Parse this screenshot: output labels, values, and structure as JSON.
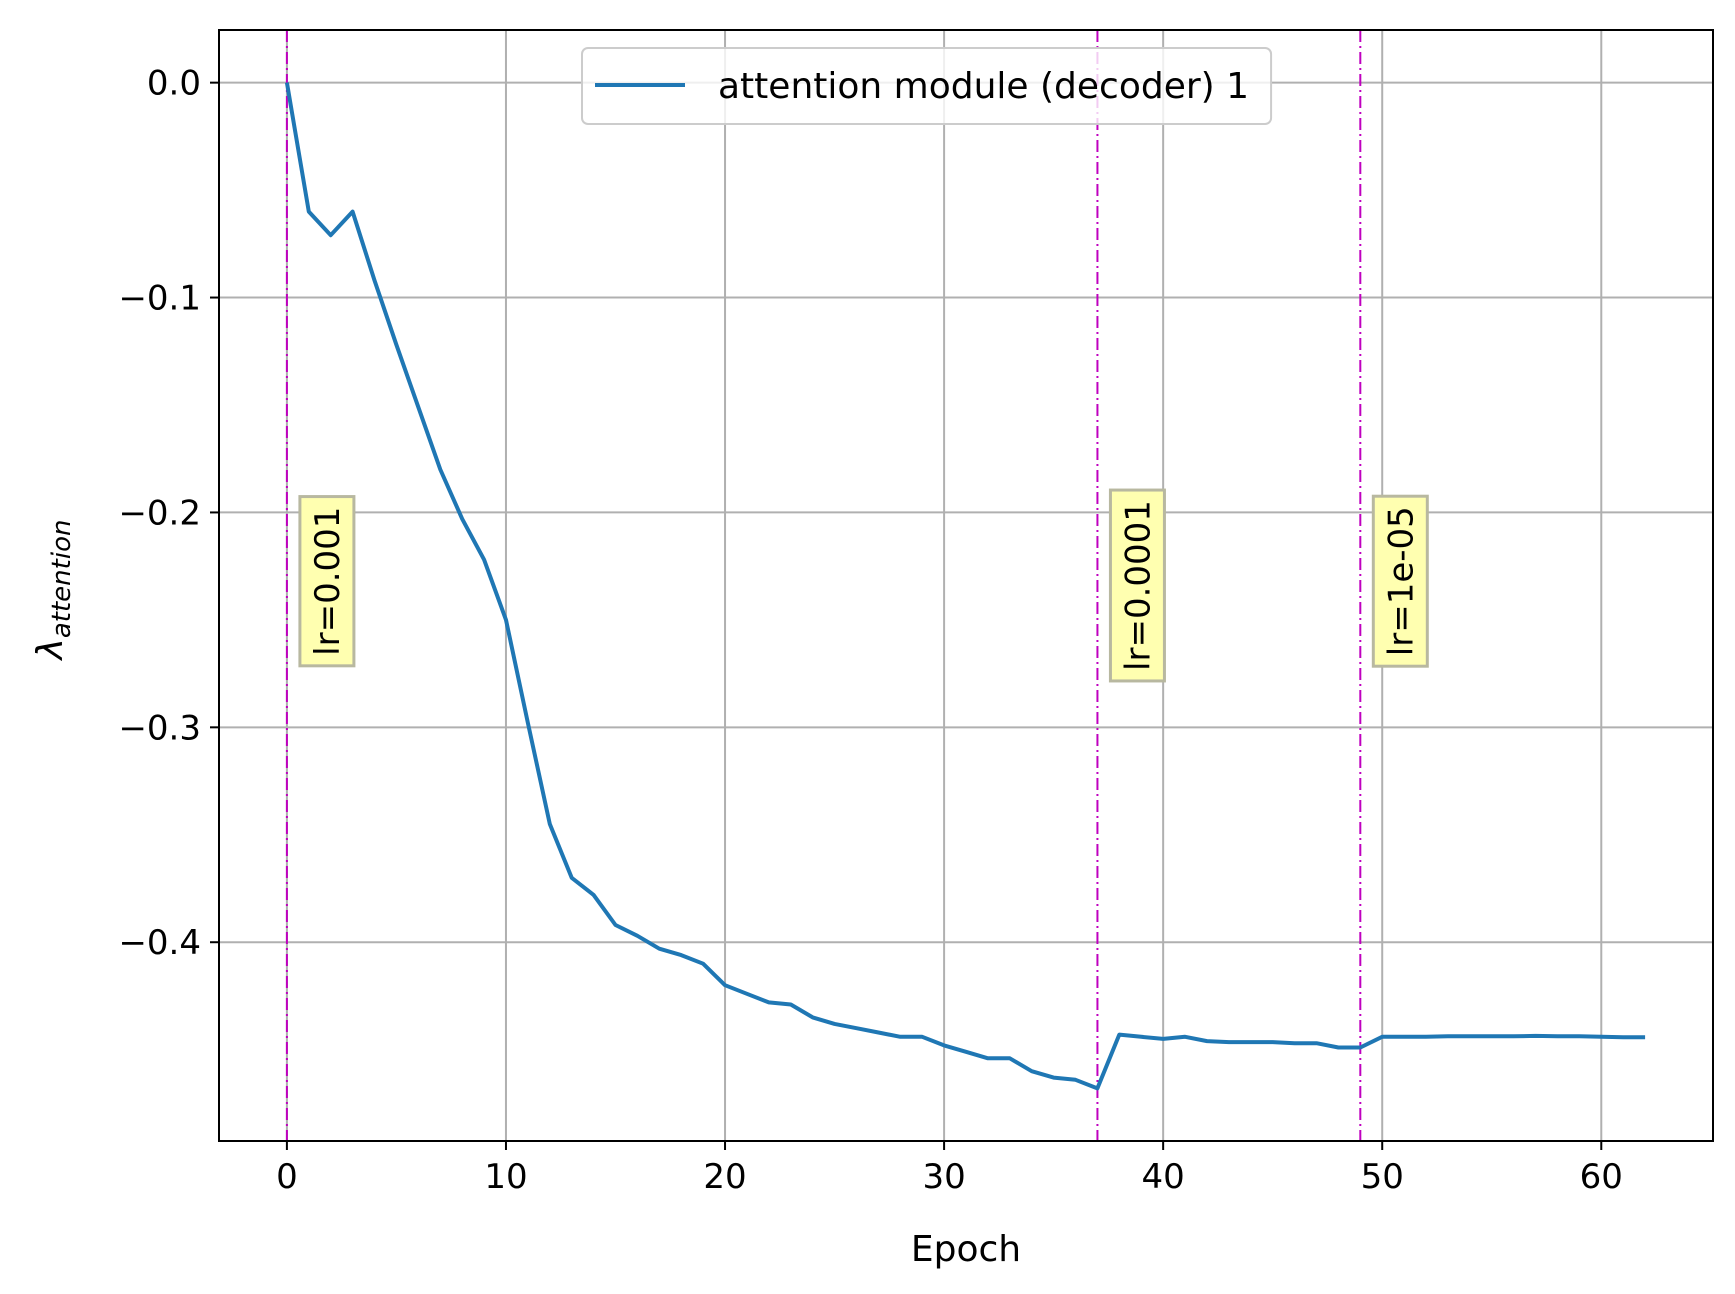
{
  "chart_data": {
    "type": "line",
    "xlabel": "Epoch",
    "ylabel_main": "λ",
    "ylabel_sub": "attention",
    "xlim": [
      -3.1,
      65.1
    ],
    "ylim": [
      -0.4925,
      0.0245
    ],
    "xticks": [
      0,
      10,
      20,
      30,
      40,
      50,
      60
    ],
    "yticks": [
      0.0,
      -0.1,
      -0.2,
      -0.3,
      -0.4
    ],
    "xtick_labels": [
      "0",
      "10",
      "20",
      "30",
      "40",
      "50",
      "60"
    ],
    "ytick_labels": [
      "0.0",
      "−0.1",
      "−0.2",
      "−0.3",
      "−0.4"
    ],
    "grid": true,
    "legend_position": "top-center",
    "colors": {
      "series": "#1f77b4",
      "vline": "#bf00bf",
      "annot_fill": "#ffffb0",
      "annot_border": "#b8b8a0",
      "grid": "#b0b0b0"
    },
    "series": [
      {
        "name": "attention module (decoder) 1",
        "x": [
          0,
          1,
          2,
          3,
          4,
          5,
          6,
          7,
          8,
          9,
          10,
          11,
          12,
          13,
          14,
          15,
          16,
          17,
          18,
          19,
          20,
          21,
          22,
          23,
          24,
          25,
          26,
          27,
          28,
          29,
          30,
          31,
          32,
          33,
          34,
          35,
          36,
          37,
          38,
          39,
          40,
          41,
          42,
          43,
          44,
          45,
          46,
          47,
          48,
          49,
          50,
          51,
          52,
          53,
          54,
          55,
          56,
          57,
          58,
          59,
          60,
          61,
          62
        ],
        "y": [
          0.0,
          -0.06,
          -0.071,
          -0.06,
          -0.092,
          -0.122,
          -0.151,
          -0.18,
          -0.203,
          -0.222,
          -0.25,
          -0.298,
          -0.345,
          -0.37,
          -0.378,
          -0.392,
          -0.397,
          -0.403,
          -0.406,
          -0.41,
          -0.42,
          -0.424,
          -0.428,
          -0.429,
          -0.435,
          -0.438,
          -0.44,
          -0.442,
          -0.444,
          -0.444,
          -0.448,
          -0.451,
          -0.454,
          -0.454,
          -0.46,
          -0.463,
          -0.464,
          -0.468,
          -0.443,
          -0.444,
          -0.445,
          -0.444,
          -0.446,
          -0.4465,
          -0.4465,
          -0.4465,
          -0.447,
          -0.447,
          -0.449,
          -0.449,
          -0.444,
          -0.444,
          -0.444,
          -0.4438,
          -0.4438,
          -0.4438,
          -0.4438,
          -0.4436,
          -0.4438,
          -0.4438,
          -0.444,
          -0.4442,
          -0.4442
        ]
      }
    ],
    "vlines": [
      {
        "x": 0,
        "label": "lr=0.001",
        "label_y": -0.232
      },
      {
        "x": 37,
        "label": "lr=0.0001",
        "label_y": -0.234
      },
      {
        "x": 49,
        "label": "lr=1e-05",
        "label_y": -0.232
      }
    ]
  }
}
